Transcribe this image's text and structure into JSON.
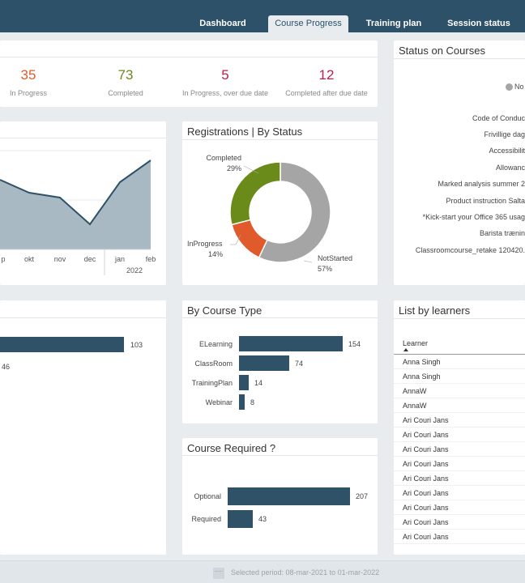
{
  "nav": {
    "tabs": [
      {
        "label": "Dashboard"
      },
      {
        "label": "Course Progress"
      },
      {
        "label": "Training plan"
      },
      {
        "label": "Session status"
      }
    ]
  },
  "kpis": [
    {
      "value": "35",
      "label": "In Progress",
      "color": "#e05a2b"
    },
    {
      "value": "73",
      "label": "Completed",
      "color": "#6a8a1a"
    },
    {
      "value": "5",
      "label": "In Progress, over due date",
      "color": "#b51f4a"
    },
    {
      "value": "12",
      "label": "Completed after due date",
      "color": "#b51f4a"
    }
  ],
  "timeline": {
    "months": [
      "p",
      "okt",
      "nov",
      "dec",
      "jan",
      "feb"
    ],
    "year": "2022"
  },
  "registrations": {
    "title": "Registrations | By Status",
    "chart_data": {
      "type": "pie",
      "categories": [
        "Completed",
        "InProgress",
        "NotStarted"
      ],
      "values": [
        29,
        14,
        57
      ],
      "colors": [
        "#6a8a1a",
        "#e05a2b",
        "#a5a5a5"
      ],
      "labels": [
        {
          "name": "Completed",
          "pct": "29%"
        },
        {
          "name": "InProgress",
          "pct": "14%"
        },
        {
          "name": "NotStarted",
          "pct": "57%"
        }
      ]
    }
  },
  "status_courses": {
    "title": "Status on Courses",
    "legend_item": "No",
    "courses": [
      "Code of Conduc",
      "Frivillige dag",
      "Accessibilit",
      "Allowanc",
      "Marked analysis summer 2",
      "Product instruction Salta",
      "*Kick-start your Office 365 usag",
      "Barista trænin",
      "Classroomcourse_retake 120420."
    ]
  },
  "left_bars": {
    "values": [
      "103",
      "46"
    ]
  },
  "course_type": {
    "title": "By Course Type",
    "chart_data": {
      "type": "bar",
      "categories": [
        "ELearning",
        "ClassRoom",
        "TrainingPlan",
        "Webinar"
      ],
      "values": [
        154,
        74,
        14,
        8
      ]
    }
  },
  "course_required": {
    "title": "Course Required ?",
    "chart_data": {
      "type": "bar",
      "categories": [
        "Optional",
        "Required"
      ],
      "values": [
        207,
        43
      ]
    }
  },
  "learners": {
    "title": "List by learners",
    "column": "Learner",
    "rows": [
      "Anna Singh",
      "Anna Singh",
      "AnnaW",
      "AnnaW",
      "Ari Couri Jans",
      "Ari Couri Jans",
      "Ari Couri Jans",
      "Ari Couri Jans",
      "Ari Couri Jans",
      "Ari Couri Jans",
      "Ari Couri Jans",
      "Ari Couri Jans",
      "Ari Couri Jans"
    ]
  },
  "footer": {
    "period": "Selected period: 08-mar-2021 to 01-mar-2022"
  }
}
